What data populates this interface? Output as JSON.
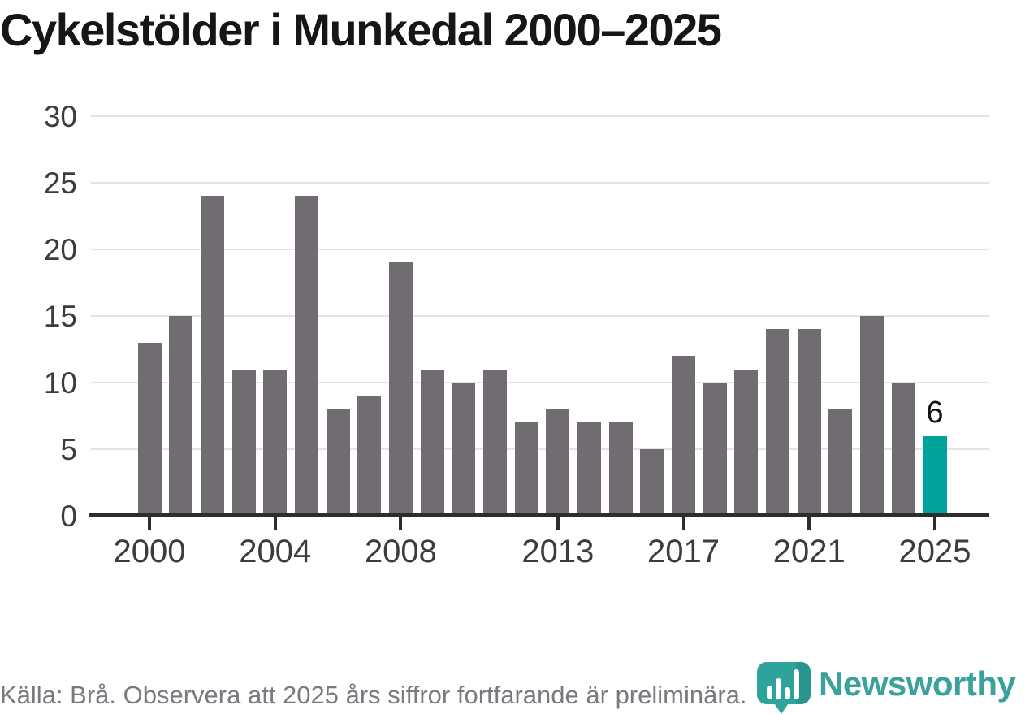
{
  "title": "Cykelstölder i Munkedal 2000–2025",
  "chart_data": {
    "type": "bar",
    "title": "Cykelstölder i Munkedal 2000–2025",
    "x": [
      2000,
      2001,
      2002,
      2003,
      2004,
      2005,
      2006,
      2007,
      2008,
      2009,
      2010,
      2011,
      2012,
      2013,
      2014,
      2015,
      2016,
      2017,
      2018,
      2019,
      2020,
      2021,
      2022,
      2023,
      2024,
      2025
    ],
    "values": [
      13,
      15,
      24,
      11,
      11,
      24,
      8,
      9,
      19,
      11,
      10,
      11,
      7,
      8,
      7,
      7,
      5,
      12,
      10,
      11,
      14,
      14,
      8,
      15,
      10,
      6
    ],
    "highlight_year": 2025,
    "highlight_value": 6,
    "highlight_label": "6",
    "bar_color": "#706c72",
    "highlight_color": "#00a39b",
    "ylim": [
      0,
      30
    ],
    "yticks": [
      "0",
      "5",
      "10",
      "15",
      "20",
      "25",
      "30"
    ],
    "xticks": [
      "2000",
      "2004",
      "2008",
      "2013",
      "2017",
      "2021",
      "2025"
    ],
    "grid": "horizontal-only",
    "legend": "none",
    "xlabel": "",
    "ylabel": ""
  },
  "footer": {
    "source_text": "Källa: Brå. Observera att 2025 års siffror fortfarande är preliminära."
  },
  "logo": {
    "brand": "Newsworthy",
    "icon": "speech-bubble-bar-chart",
    "wordmark_color": "#3aa29b",
    "icon_color": "#2da39b",
    "icon_shade_color": "#28958e"
  },
  "colors": {
    "background": "#ffffff",
    "title_text": "#161616",
    "axis_line": "#2d2d2d",
    "gridline": "#e4e4e4",
    "tick_text": "#3c3c3c",
    "footer_text": "#7b7980"
  }
}
